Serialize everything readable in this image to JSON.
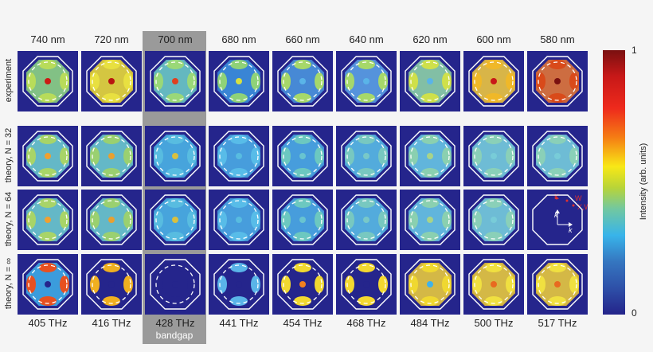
{
  "figure": {
    "columns": [
      {
        "wavelength": "740 nm",
        "frequency": "405 THz"
      },
      {
        "wavelength": "720 nm",
        "frequency": "416 THz"
      },
      {
        "wavelength": "700 nm",
        "frequency": "428 THz",
        "highlight": true,
        "note": "bandgap"
      },
      {
        "wavelength": "680 nm",
        "frequency": "441 THz"
      },
      {
        "wavelength": "660 nm",
        "frequency": "454 THz"
      },
      {
        "wavelength": "640 nm",
        "frequency": "468 THz"
      },
      {
        "wavelength": "620 nm",
        "frequency": "484 THz"
      },
      {
        "wavelength": "600 nm",
        "frequency": "500 THz"
      },
      {
        "wavelength": "580 nm",
        "frequency": "517 THz"
      }
    ],
    "rows": [
      {
        "label": "experiment"
      },
      {
        "label": "theory, N = 32"
      },
      {
        "label": "theory, N = 64"
      },
      {
        "label": "theory, N = ∞"
      }
    ],
    "bandgap_label": "bandgap",
    "colorbar": {
      "title": "Intensity (arb. units)",
      "max_label": "1",
      "min_label": "0",
      "colors": [
        "#7a1010",
        "#ee2a1c",
        "#f8e816",
        "#72c8a0",
        "#38b4ea",
        "#24248a"
      ]
    },
    "inset_annotations": {
      "k_y": "k",
      "k_x": "k",
      "points": [
        "K",
        "W",
        "X,W"
      ]
    },
    "colors": {
      "panel_bg": "#25258c",
      "band_highlight": "#9a9a9a",
      "outline": "#ffffff",
      "annotation": "#e03030"
    }
  }
}
